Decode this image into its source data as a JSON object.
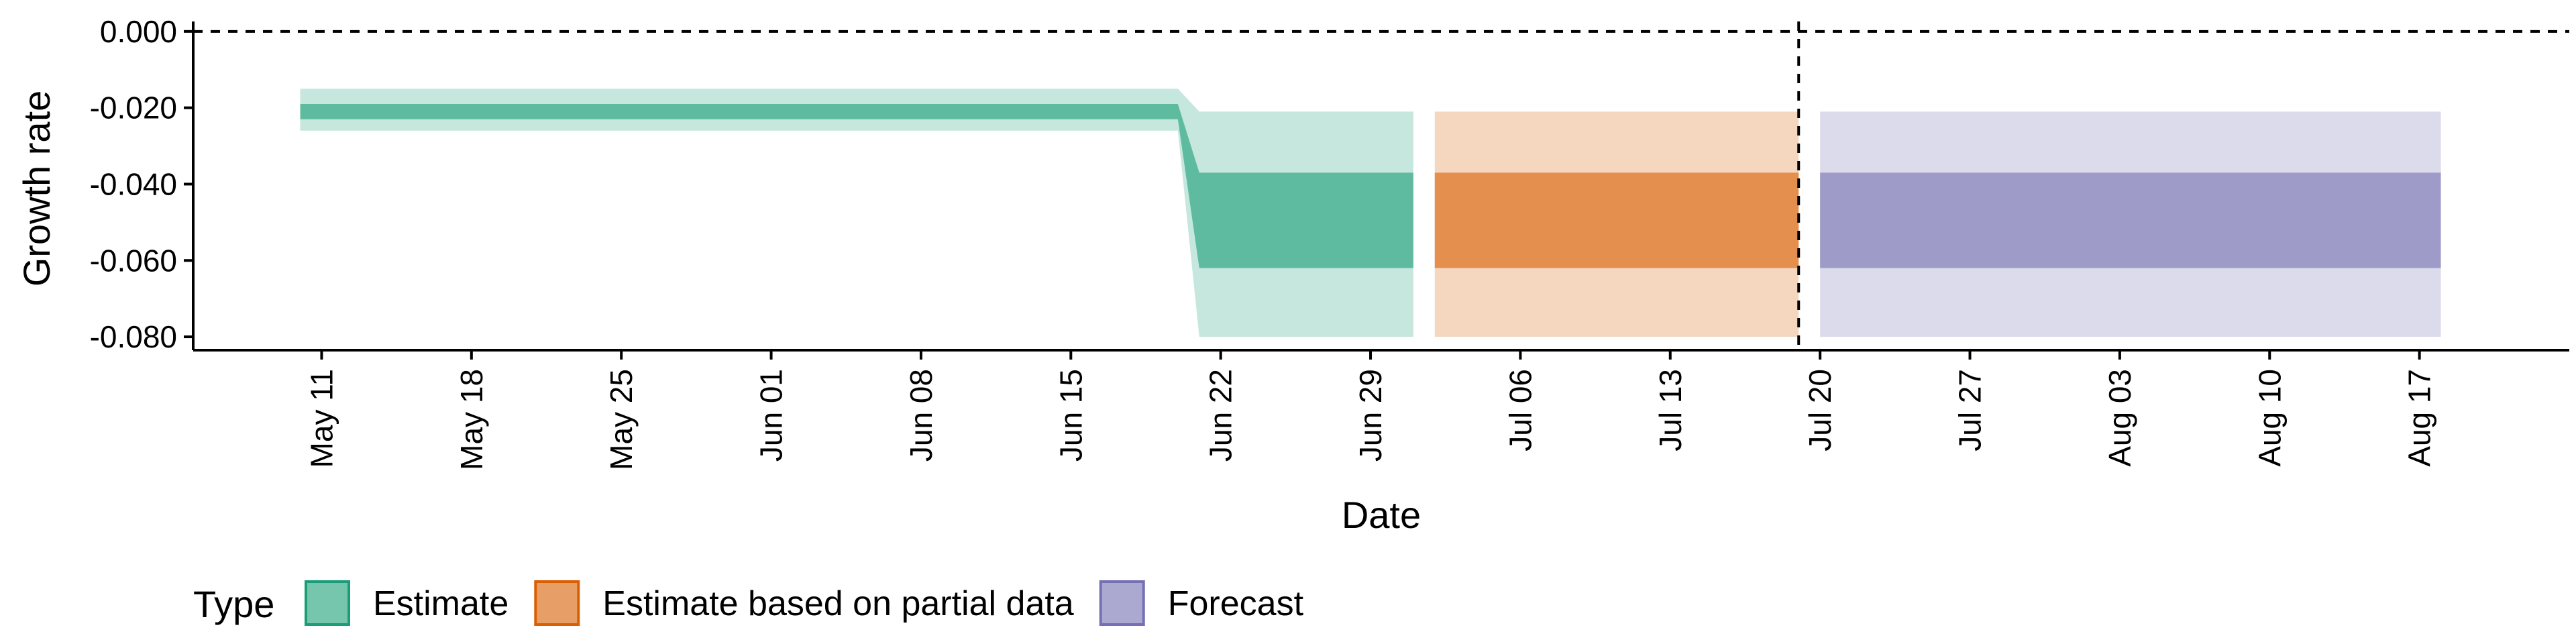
{
  "chart_data": {
    "type": "area",
    "xlabel": "Date",
    "ylabel": "Growth rate",
    "x_tick_labels": [
      "May 11",
      "May 18",
      "May 25",
      "Jun 01",
      "Jun 08",
      "Jun 15",
      "Jun 22",
      "Jun 29",
      "Jul 06",
      "Jul 13",
      "Jul 20",
      "Jul 27",
      "Aug 03",
      "Aug 10",
      "Aug 17"
    ],
    "x_tick_dates": [
      "2020-05-11",
      "2020-05-18",
      "2020-05-25",
      "2020-06-01",
      "2020-06-08",
      "2020-06-15",
      "2020-06-22",
      "2020-06-29",
      "2020-07-06",
      "2020-07-13",
      "2020-07-20",
      "2020-07-27",
      "2020-08-03",
      "2020-08-10",
      "2020-08-17"
    ],
    "y_tick_labels": [
      "-0.080",
      "-0.060",
      "-0.040",
      "-0.020",
      "0.000"
    ],
    "y_tick_values": [
      -0.08,
      -0.06,
      -0.04,
      -0.02,
      0.0
    ],
    "xlim": [
      "2020-05-05",
      "2020-08-24"
    ],
    "ylim": [
      -0.0835,
      0.0012
    ],
    "hline": 0.0,
    "vline_date": "2020-07-19",
    "grid": false,
    "legend": {
      "title": "Type",
      "position": "bottom-left",
      "entries": [
        {
          "name": "Estimate",
          "color": "#1b9e77"
        },
        {
          "name": "Estimate based on partial data",
          "color": "#d95f02"
        },
        {
          "name": "Forecast",
          "color": "#7570b3"
        }
      ]
    },
    "series": [
      {
        "name": "Estimate",
        "color": "#1b9e77",
        "x": [
          "2020-05-10",
          "2020-06-20",
          "2020-06-21",
          "2020-07-01"
        ],
        "lower_90": [
          -0.026,
          -0.026,
          -0.08,
          -0.08
        ],
        "upper_90": [
          -0.015,
          -0.015,
          -0.021,
          -0.021
        ],
        "lower_50": [
          -0.023,
          -0.023,
          -0.062,
          -0.062
        ],
        "upper_50": [
          -0.019,
          -0.019,
          -0.037,
          -0.037
        ]
      },
      {
        "name": "Estimate based on partial data",
        "color": "#d95f02",
        "x": [
          "2020-07-02",
          "2020-07-19"
        ],
        "lower_90": [
          -0.08,
          -0.08
        ],
        "upper_90": [
          -0.021,
          -0.021
        ],
        "lower_50": [
          -0.062,
          -0.062
        ],
        "upper_50": [
          -0.037,
          -0.037
        ]
      },
      {
        "name": "Forecast",
        "color": "#7570b3",
        "x": [
          "2020-07-20",
          "2020-08-18"
        ],
        "lower_90": [
          -0.08,
          -0.08
        ],
        "upper_90": [
          -0.021,
          -0.021
        ],
        "lower_50": [
          -0.062,
          -0.062
        ],
        "upper_50": [
          -0.037,
          -0.037
        ]
      }
    ]
  }
}
